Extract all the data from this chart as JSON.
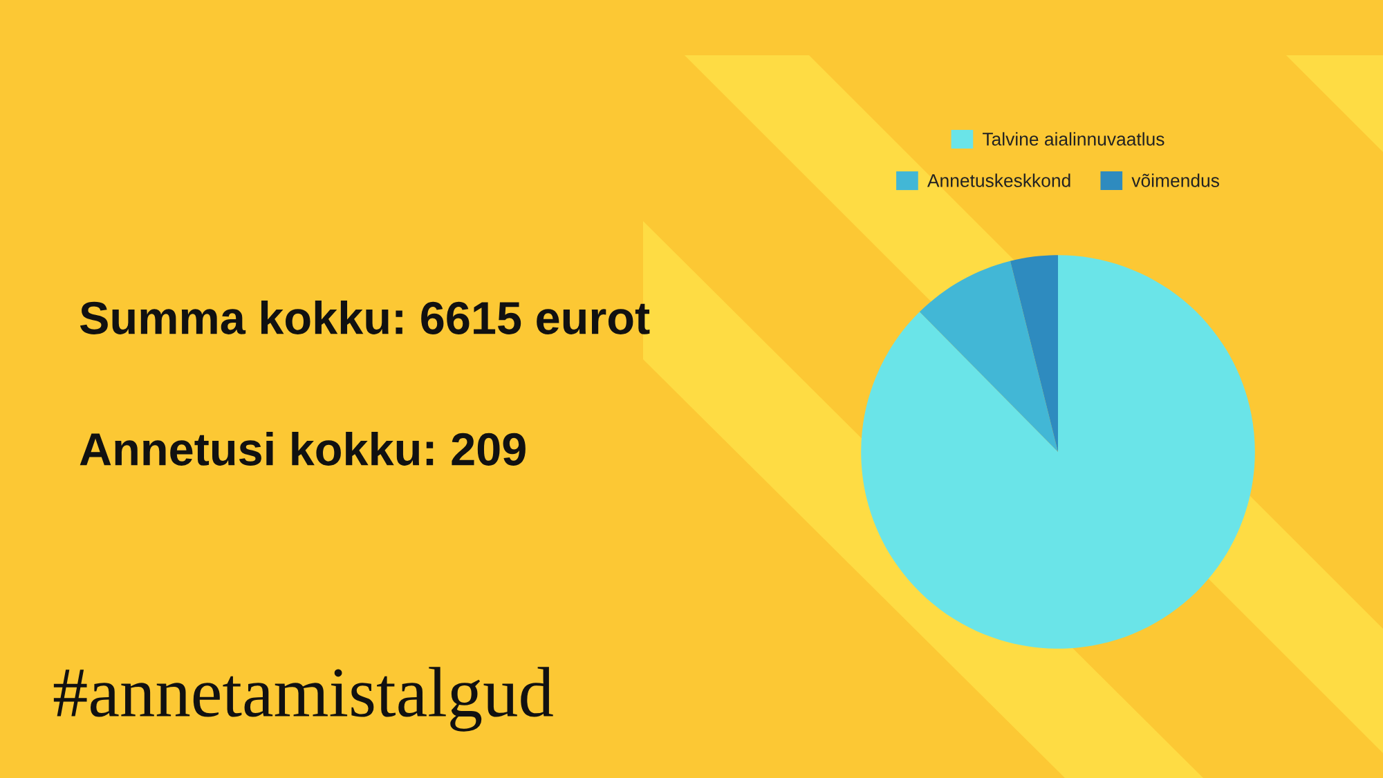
{
  "chart_data": {
    "type": "pie",
    "categories": [
      "Talvine aialinnuvaatlus",
      "Annetuskeskkond",
      "võimendus"
    ],
    "values": [
      87.6,
      8.5,
      3.9
    ],
    "colors": [
      "#6ae4e8",
      "#42b7d6",
      "#2e8bbf"
    ],
    "legend": "top",
    "annotations": [
      "Summa kokku: 6615 eurot",
      "Annetusi kokku: 209",
      "#annetamistalgud"
    ]
  }
}
